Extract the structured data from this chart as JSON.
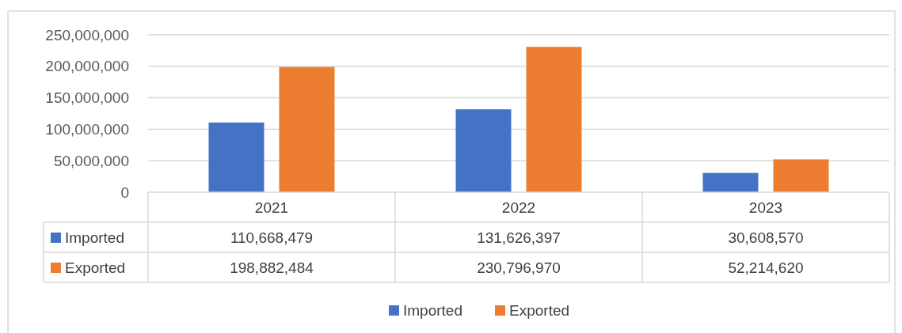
{
  "chart_data": {
    "type": "bar",
    "categories": [
      "2021",
      "2022",
      "2023"
    ],
    "series": [
      {
        "name": "Imported",
        "color": "#4472c4",
        "values": [
          110668479,
          131626397,
          30608570
        ],
        "value_labels": [
          "110,668,479",
          "131,626,397",
          "30,608,570"
        ]
      },
      {
        "name": "Exported",
        "color": "#ed7d31",
        "values": [
          198882484,
          230796970,
          52214620
        ],
        "value_labels": [
          "198,882,484",
          "230,796,970",
          "52,214,620"
        ]
      }
    ],
    "ylim": [
      0,
      250000000
    ],
    "yticks": [
      {
        "value": 0,
        "label": "0"
      },
      {
        "value": 50000000,
        "label": "50,000,000"
      },
      {
        "value": 100000000,
        "label": "100,000,000"
      },
      {
        "value": 150000000,
        "label": "150,000,000"
      },
      {
        "value": 200000000,
        "label": "200,000,000"
      },
      {
        "value": 250000000,
        "label": "250,000,000"
      }
    ],
    "grid": "y",
    "legend": "bottom"
  }
}
